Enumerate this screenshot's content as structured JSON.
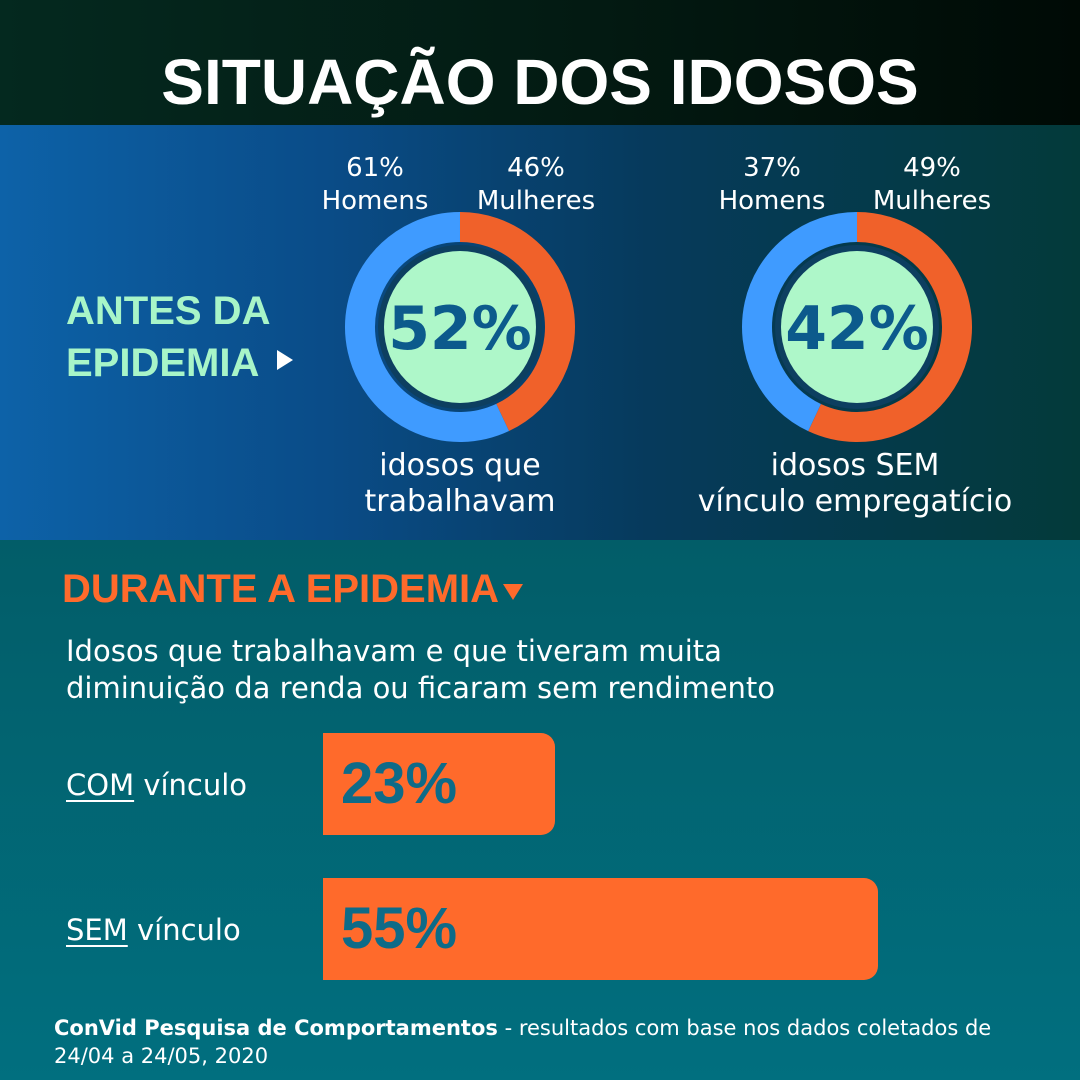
{
  "header": {
    "title": "SITUAÇÃO DOS IDOSOS"
  },
  "antes": {
    "line1": "ANTES DA",
    "line2": "EPIDEMIA"
  },
  "chart_data": [
    {
      "type": "pie",
      "center_value": "52%",
      "segments": [
        {
          "label": "Homens",
          "value_label": "61%",
          "value": 61,
          "color": "#3f9bff"
        },
        {
          "label": "Mulheres",
          "value_label": "46%",
          "value": 46,
          "color": "#f0612a"
        }
      ],
      "caption": [
        "idosos que",
        "trabalhavam"
      ]
    },
    {
      "type": "pie",
      "center_value": "42%",
      "segments": [
        {
          "label": "Homens",
          "value_label": "37%",
          "value": 37,
          "color": "#3f9bff"
        },
        {
          "label": "Mulheres",
          "value_label": "49%",
          "value": 49,
          "color": "#f0612a"
        }
      ],
      "caption": [
        "idosos SEM",
        "vínculo  empregatício"
      ]
    },
    {
      "type": "bar",
      "orientation": "horizontal",
      "title": "DURANTE A EPIDEMIA",
      "subtitle": [
        "Idosos que trabalhavam e que tiveram muita",
        "diminuição da renda ou ficaram sem rendimento"
      ],
      "categories": [
        {
          "emphasis": "COM",
          "rest": " vínculo"
        },
        {
          "emphasis": "SEM",
          "rest": " vínculo"
        }
      ],
      "values": [
        23,
        55
      ],
      "value_labels": [
        "23%",
        "55%"
      ],
      "color": "#ff6a2b"
    }
  ],
  "colors": {
    "homens": "#3f9bff",
    "mulheres": "#f0612a",
    "center_fill": "#aef7c9",
    "center_text": "#0c5a8c",
    "accent": "#ff6a2b"
  },
  "footer": {
    "source": "ConVid Pesquisa de Comportamentos",
    "note": " - resultados com base nos dados coletados de 24/04 a 24/05, 2020"
  }
}
